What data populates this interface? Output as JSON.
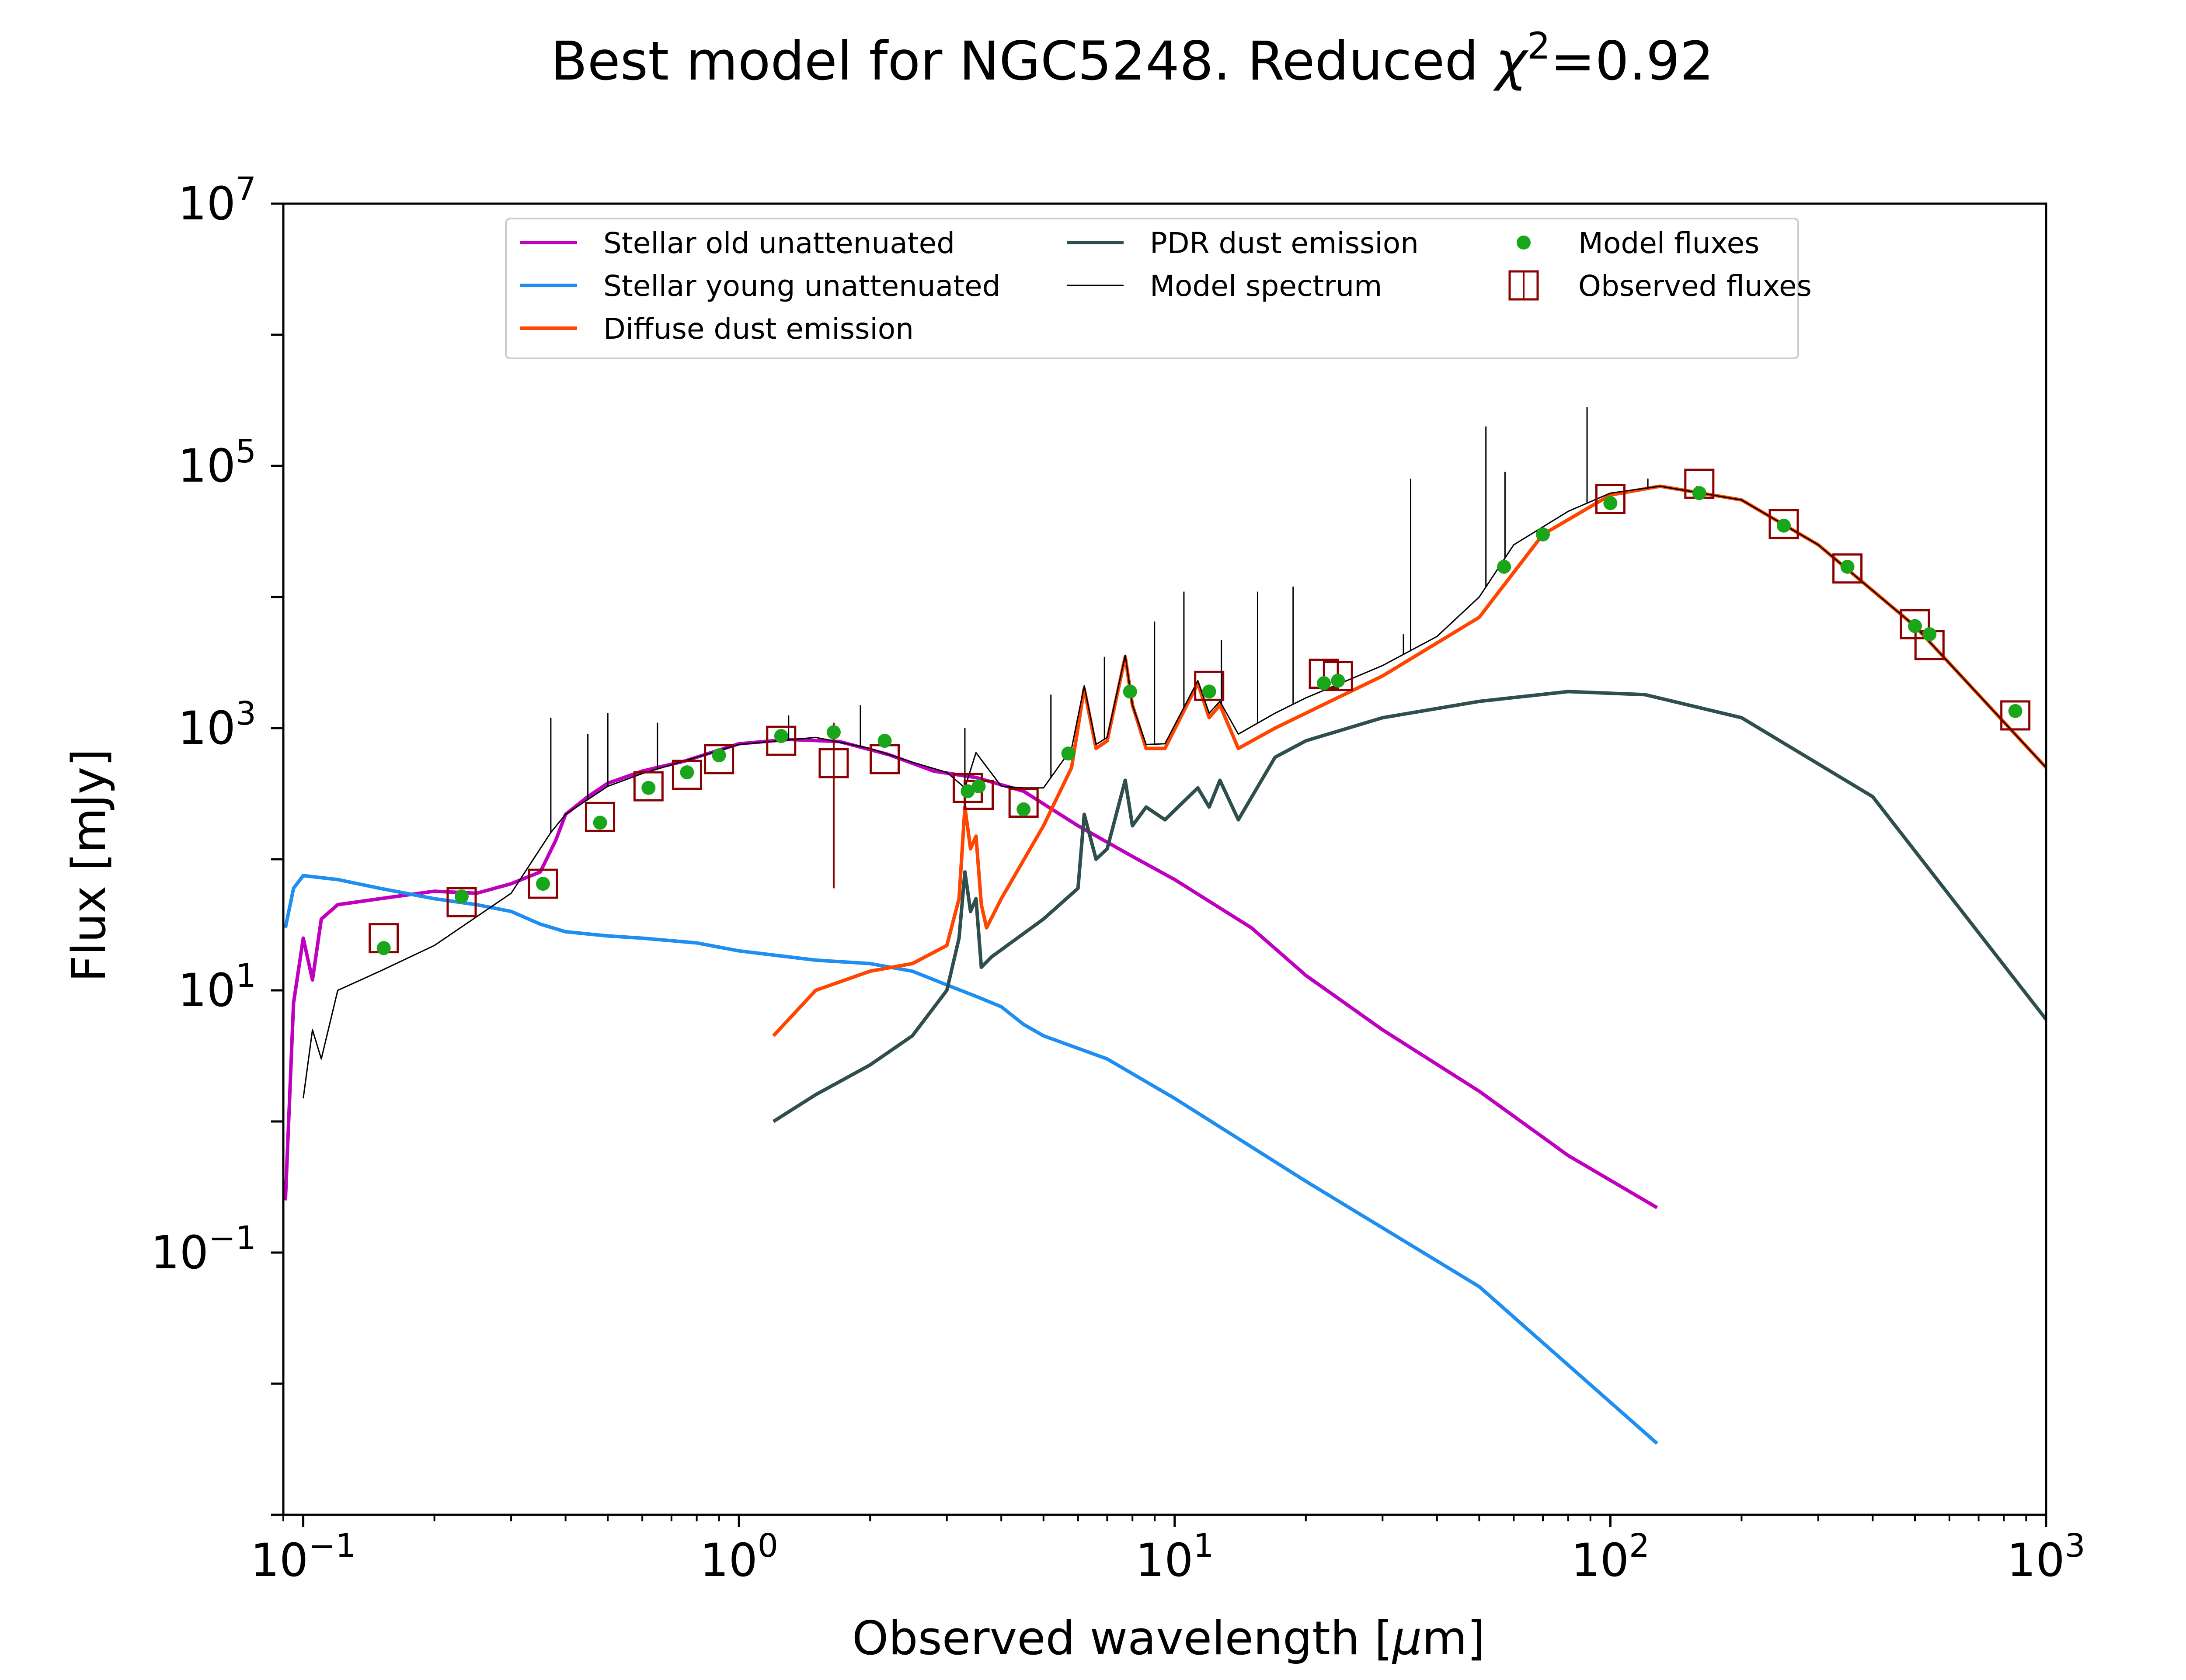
{
  "chart_data": {
    "type": "line",
    "title_prefix": "Best model for NGC5248. Reduced ",
    "title_chi": "χ",
    "title_exp": "2",
    "title_suffix": "=0.92",
    "xlabel_prefix": "Observed wavelength [",
    "xlabel_mu": "μ",
    "xlabel_suffix": "m]",
    "ylabel": "Flux [mJy]",
    "x_scale": "log",
    "y_scale": "log",
    "xlim": [
      0.09,
      1000
    ],
    "ylim": [
      0.001,
      10000000
    ],
    "grid": false,
    "legend_position": "top-center",
    "x_ticks": [
      {
        "value": 0.1,
        "base": "10",
        "exp": "−1"
      },
      {
        "value": 1,
        "base": "10",
        "exp": "0"
      },
      {
        "value": 10,
        "base": "10",
        "exp": "1"
      },
      {
        "value": 100,
        "base": "10",
        "exp": "2"
      },
      {
        "value": 1000,
        "base": "10",
        "exp": "3"
      }
    ],
    "y_ticks": [
      {
        "value": 0.1,
        "base": "10",
        "exp": "−1"
      },
      {
        "value": 10,
        "base": "10",
        "exp": "1"
      },
      {
        "value": 1000,
        "base": "10",
        "exp": "3"
      },
      {
        "value": 100000,
        "base": "10",
        "exp": "5"
      },
      {
        "value": 10000000,
        "base": "10",
        "exp": "7"
      }
    ],
    "series": [
      {
        "name": "Stellar old unattenuated",
        "color": "#bf00bf",
        "x": [
          0.091,
          0.095,
          0.1,
          0.105,
          0.11,
          0.12,
          0.15,
          0.2,
          0.25,
          0.3,
          0.35,
          0.38,
          0.4,
          0.45,
          0.5,
          0.6,
          0.75,
          1.0,
          1.3,
          1.7,
          2.2,
          2.8,
          3.5,
          4.5,
          6,
          8,
          10,
          15,
          20,
          30,
          50,
          80,
          128
        ],
        "y": [
          0.25,
          8,
          25,
          12,
          35,
          45,
          50,
          57,
          55,
          65,
          80,
          140,
          220,
          300,
          380,
          470,
          560,
          760,
          820,
          790,
          630,
          470,
          420,
          330,
          180,
          105,
          70,
          30,
          13,
          5,
          1.7,
          0.55,
          0.22
        ]
      },
      {
        "name": "Stellar young unattenuated",
        "color": "#1f8ef1",
        "x": [
          0.091,
          0.095,
          0.1,
          0.12,
          0.15,
          0.2,
          0.25,
          0.3,
          0.35,
          0.4,
          0.5,
          0.6,
          0.8,
          1.0,
          1.5,
          2.0,
          2.5,
          3.0,
          3.5,
          4.0,
          4.5,
          5.0,
          7,
          10,
          20,
          50,
          128
        ],
        "y": [
          30,
          60,
          75,
          70,
          60,
          50,
          45,
          40,
          32,
          28,
          26,
          25,
          23,
          20,
          17,
          16,
          14,
          11,
          9,
          7.5,
          5.5,
          4.5,
          3,
          1.5,
          0.35,
          0.055,
          0.0035
        ]
      },
      {
        "name": "Diffuse dust emission",
        "color": "#ff4500",
        "x": [
          1.2,
          1.5,
          2,
          2.5,
          3.0,
          3.2,
          3.3,
          3.4,
          3.5,
          3.6,
          3.7,
          4.0,
          5.0,
          5.8,
          6.2,
          6.6,
          7.0,
          7.7,
          8.0,
          8.6,
          9.5,
          11.3,
          12,
          12.7,
          14,
          17,
          20,
          30,
          50,
          70,
          100,
          130,
          200,
          300,
          500,
          1000
        ],
        "y": [
          4.5,
          10,
          14,
          16,
          22,
          50,
          250,
          120,
          150,
          45,
          30,
          50,
          180,
          500,
          2000,
          700,
          800,
          3500,
          1500,
          700,
          700,
          2200,
          1200,
          1500,
          700,
          1000,
          1300,
          2500,
          7000,
          30000,
          60000,
          70000,
          55000,
          25000,
          6000,
          500
        ]
      },
      {
        "name": "PDR dust emission",
        "color": "#2f4f4f",
        "x": [
          1.2,
          1.5,
          2.0,
          2.5,
          3.0,
          3.2,
          3.3,
          3.4,
          3.5,
          3.6,
          3.8,
          5.0,
          6.0,
          6.2,
          6.6,
          7.0,
          7.7,
          8.0,
          8.6,
          9.5,
          11.3,
          12,
          12.7,
          14,
          17,
          20,
          30,
          50,
          80,
          120,
          200,
          400,
          1000
        ],
        "y": [
          1,
          1.6,
          2.7,
          4.5,
          10,
          25,
          80,
          40,
          50,
          15,
          18,
          35,
          60,
          220,
          100,
          120,
          400,
          180,
          250,
          200,
          350,
          250,
          400,
          200,
          600,
          800,
          1200,
          1600,
          1900,
          1800,
          1200,
          300,
          6
        ]
      },
      {
        "name": "Model spectrum",
        "color": "#000000",
        "x": [
          0.1,
          0.105,
          0.11,
          0.12,
          0.15,
          0.2,
          0.3,
          0.37,
          0.4,
          0.5,
          0.6,
          0.8,
          1.0,
          1.5,
          2.0,
          2.5,
          3.0,
          3.3,
          3.5,
          4.0,
          4.5,
          5.0,
          5.8,
          6.2,
          6.6,
          7.0,
          7.7,
          8.0,
          8.6,
          9.5,
          11.3,
          12,
          12.7,
          14,
          17,
          20,
          30,
          40,
          50,
          60,
          80,
          100,
          130,
          200,
          300,
          500,
          1000
        ],
        "y": [
          1.5,
          5,
          3,
          10,
          14,
          22,
          55,
          160,
          220,
          360,
          450,
          600,
          750,
          850,
          700,
          550,
          460,
          350,
          650,
          360,
          350,
          350,
          700,
          2100,
          750,
          850,
          3600,
          1500,
          750,
          760,
          2300,
          1300,
          1600,
          900,
          1300,
          1700,
          3000,
          5000,
          10000,
          25000,
          45000,
          62000,
          70000,
          55000,
          25000,
          6000,
          500
        ],
        "lines": [
          {
            "x": 0.37,
            "y": 1200
          },
          {
            "x": 0.45,
            "y": 900
          },
          {
            "x": 0.5,
            "y": 1300
          },
          {
            "x": 0.65,
            "y": 1100
          },
          {
            "x": 1.3,
            "y": 1250
          },
          {
            "x": 1.9,
            "y": 1500
          },
          {
            "x": 3.3,
            "y": 1000
          },
          {
            "x": 5.2,
            "y": 1800
          },
          {
            "x": 6.9,
            "y": 3500
          },
          {
            "x": 8.99,
            "y": 6500
          },
          {
            "x": 10.5,
            "y": 11000
          },
          {
            "x": 12.8,
            "y": 4700
          },
          {
            "x": 15.5,
            "y": 11000
          },
          {
            "x": 18.7,
            "y": 12000
          },
          {
            "x": 33.5,
            "y": 5200
          },
          {
            "x": 34.8,
            "y": 80000
          },
          {
            "x": 51.8,
            "y": 200000
          },
          {
            "x": 57.3,
            "y": 90000
          },
          {
            "x": 88.4,
            "y": 280000
          },
          {
            "x": 121.9,
            "y": 80000
          },
          {
            "x": 157.7,
            "y": 70000
          }
        ]
      }
    ],
    "model_fluxes": {
      "name": "Model fluxes",
      "color": "#1aa61a",
      "x": [
        0.153,
        0.231,
        0.355,
        0.48,
        0.62,
        0.76,
        0.9,
        1.25,
        1.65,
        2.16,
        3.35,
        3.55,
        4.5,
        5.7,
        7.9,
        12.0,
        22.0,
        23.7,
        57,
        70,
        100,
        160,
        250,
        350,
        500,
        540,
        850
      ],
      "y": [
        21,
        52,
        65,
        190,
        350,
        460,
        620,
        870,
        930,
        800,
        330,
        360,
        240,
        640,
        1900,
        1900,
        2200,
        2300,
        17000,
        30000,
        52000,
        62000,
        35000,
        17000,
        6000,
        5200,
        1350
      ]
    },
    "observed_fluxes": {
      "name": "Observed fluxes",
      "color": "#8b0000",
      "x": [
        0.153,
        0.231,
        0.355,
        0.48,
        0.62,
        0.76,
        0.9,
        1.25,
        1.65,
        2.16,
        3.35,
        3.55,
        4.5,
        12.0,
        22.0,
        23.7,
        100,
        160,
        250,
        350,
        500,
        540,
        850
      ],
      "y": [
        25,
        47,
        65,
        210,
        360,
        440,
        580,
        800,
        540,
        580,
        350,
        310,
        270,
        2100,
        2600,
        2500,
        56000,
        73000,
        36000,
        16500,
        6200,
        4300,
        1250
      ],
      "err_low": [
        null,
        null,
        null,
        null,
        null,
        null,
        null,
        null,
        60,
        null,
        null,
        null,
        null,
        null,
        null,
        null,
        null,
        null,
        null,
        null,
        null,
        null,
        null
      ],
      "err_high": [
        null,
        null,
        null,
        null,
        null,
        null,
        null,
        null,
        1100,
        null,
        null,
        null,
        null,
        null,
        null,
        null,
        null,
        null,
        null,
        null,
        null,
        null,
        null
      ]
    }
  }
}
